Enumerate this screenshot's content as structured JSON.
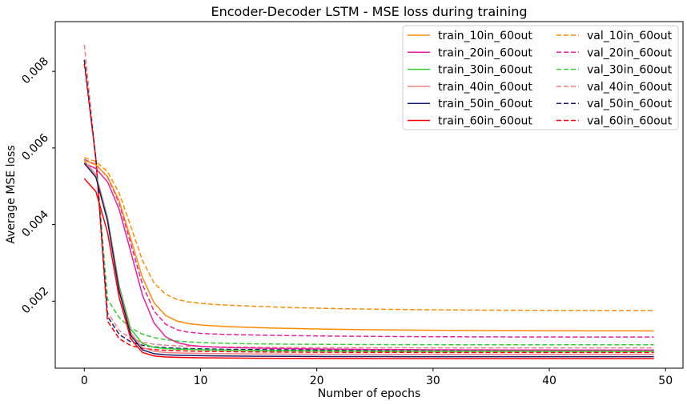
{
  "chart_data": {
    "type": "line",
    "title": "Encoder-Decoder LSTM - MSE loss during training",
    "xlabel": "Number of epochs",
    "ylabel": "Average MSE loss",
    "xlim": [
      -2.5,
      51.5
    ],
    "ylim": [
      0.00025,
      0.0093
    ],
    "xticks": [
      0,
      10,
      20,
      30,
      40,
      50
    ],
    "xtick_labels": [
      "0",
      "10",
      "20",
      "30",
      "40",
      "50"
    ],
    "yticks": [
      0.002,
      0.004,
      0.006,
      0.008
    ],
    "ytick_labels": [
      "0.002",
      "0.004",
      "0.006",
      "0.008"
    ],
    "grid": false,
    "legend_placement": "top-right",
    "legend_columns": 2,
    "series": [
      {
        "name": "train_10in_60out",
        "color": "#ff8c00",
        "dash": "solid",
        "model": "tail",
        "params": [
          0.00568,
          0.0008,
          1.0,
          4,
          0.00122,
          0.002,
          2.0,
          10,
          0.0004
        ]
      },
      {
        "name": "train_20in_60out",
        "color": "#e91ea0",
        "dash": "solid",
        "model": "tail",
        "params": [
          0.0056,
          0.0008,
          1.0,
          4,
          0.00072,
          0.0018,
          1.7,
          10,
          0.00024
        ]
      },
      {
        "name": "train_30in_60out",
        "color": "#32cd32",
        "dash": "solid",
        "model": "tail",
        "params": [
          0.00566,
          0.0008,
          1.5,
          2.5,
          0.00069,
          0.00105,
          1.25,
          7,
          0.00018
        ]
      },
      {
        "name": "train_40in_60out",
        "color": "#f08080",
        "dash": "solid",
        "model": "tail",
        "params": [
          0.00566,
          0.0008,
          1.5,
          2.5,
          0.00061,
          0.00076,
          1.0,
          6,
          0.00014
        ]
      },
      {
        "name": "train_50in_60out",
        "color": "#191970",
        "dash": "solid",
        "model": "tail",
        "params": [
          0.0056,
          0.0008,
          1.5,
          2.5,
          0.00055,
          0.0007,
          0.9,
          6,
          0.00014
        ]
      },
      {
        "name": "train_60in_60out",
        "color": "#ff0000",
        "dash": "solid",
        "model": "tail",
        "params": [
          0.0052,
          0.0008,
          1.5,
          2.5,
          0.0005,
          0.00063,
          0.85,
          6,
          0.00012
        ]
      },
      {
        "name": "val_10in_60out",
        "color": "#ff8c00",
        "dash": "dashed",
        "model": "tail",
        "params": [
          0.00575,
          0.0008,
          1.0,
          4,
          0.00175,
          0.0025,
          2.0,
          10,
          0.0005
        ]
      },
      {
        "name": "val_20in_60out",
        "color": "#e91ea0",
        "dash": "dashed",
        "model": "tail",
        "params": [
          0.0057,
          0.0008,
          1.0,
          4,
          0.00106,
          0.002,
          1.7,
          10,
          0.00024
        ]
      },
      {
        "name": "val_30in_60out",
        "color": "#32cd32",
        "dash": "dashed",
        "model": "spike",
        "params": [
          0.0083,
          0.0057,
          0.00086,
          0.00103,
          1.7,
          7,
          0.00016
        ]
      },
      {
        "name": "val_40in_60out",
        "color": "#f08080",
        "dash": "dashed",
        "model": "spike",
        "params": [
          0.0087,
          0.0057,
          0.00078,
          0.0008,
          1.2,
          6,
          0.00013
        ]
      },
      {
        "name": "val_50in_60out",
        "color": "#191970",
        "dash": "dashed",
        "model": "spike",
        "params": [
          0.0083,
          0.0057,
          0.00072,
          0.00075,
          1.1,
          6,
          0.00013
        ]
      },
      {
        "name": "val_60in_60out",
        "color": "#ff0000",
        "dash": "dashed",
        "model": "spike",
        "params": [
          0.0082,
          0.0057,
          0.00066,
          0.0007,
          1.0,
          6,
          0.00012
        ]
      }
    ]
  }
}
